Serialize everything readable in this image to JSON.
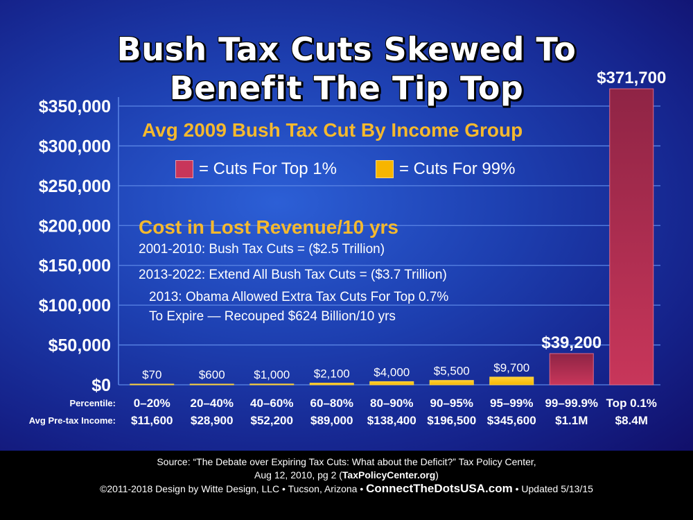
{
  "chart_data": {
    "type": "bar",
    "title": [
      "Bush Tax Cuts Skewed To",
      "Benefit The Tip Top"
    ],
    "subtitle": "Avg 2009 Bush Tax Cut By Income Group",
    "categories": [
      "0–20%",
      "20–40%",
      "40–60%",
      "60–80%",
      "80–90%",
      "90–95%",
      "95–99%",
      "99–99.9%",
      "Top 0.1%"
    ],
    "row_label_percentile": "Percentile:",
    "row_label_income": "Avg Pre-tax Income:",
    "income": [
      "$11,600",
      "$28,900",
      "$52,200",
      "$89,000",
      "$138,400",
      "$196,500",
      "$345,600",
      "$1.1M",
      "$8.4M"
    ],
    "values": [
      70,
      600,
      1000,
      2100,
      4000,
      5500,
      9700,
      39200,
      371700
    ],
    "value_labels": [
      "$70",
      "$600",
      "$1,000",
      "$2,100",
      "$4,000",
      "$5,500",
      "$9,700",
      "$39,200",
      "$371,700"
    ],
    "group": [
      "99",
      "99",
      "99",
      "99",
      "99",
      "99",
      "99",
      "top1",
      "top1"
    ],
    "ylim": [
      0,
      371700
    ],
    "yticks": [
      0,
      50000,
      100000,
      150000,
      200000,
      250000,
      300000,
      350000
    ],
    "ytick_labels": [
      "$0",
      "$50,000",
      "$100,000",
      "$150,000",
      "$200,000",
      "$250,000",
      "$300,000",
      "$350,000"
    ],
    "grid": true,
    "legend": [
      {
        "key": "top1",
        "label": "= Cuts For Top 1%",
        "color": "#c8365a"
      },
      {
        "key": "99",
        "label": "= Cuts For 99%",
        "color": "#f7b500"
      }
    ],
    "legend_position": "top-left"
  },
  "annotations": {
    "cost_title": "Cost in Lost Revenue/10 yrs",
    "line1": "2001-2010: Bush Tax Cuts = ($2.5 Trillion)",
    "line2": "2013-2022: Extend All Bush Tax Cuts = ($3.7 Trillion)",
    "line3": "2013: Obama Allowed Extra Tax Cuts For Top 0.7%",
    "line4": "To Expire — Recouped $624 Billion/10 yrs"
  },
  "footer": {
    "line1": "Source: “The Debate over Expiring Tax Cuts: What about the Deficit?” Tax Policy Center,",
    "line2a": "Aug 12, 2010, pg 2 (",
    "line2b": "TaxPolicyCenter.org",
    "line2c": ")",
    "line3a": "©2011-2018 Design by Witte Design, LLC • Tucson, Arizona •",
    "site": "ConnectTheDotsUSA.com",
    "line3b": "• Updated 5/13/15"
  },
  "colors": {
    "top1": "#c8365a",
    "top1_dark": "#8f2445",
    "p99": "#f7b500",
    "p99_light": "#ffd23a",
    "gridline": "#5b86e6",
    "axis_text": "#ffffff"
  }
}
